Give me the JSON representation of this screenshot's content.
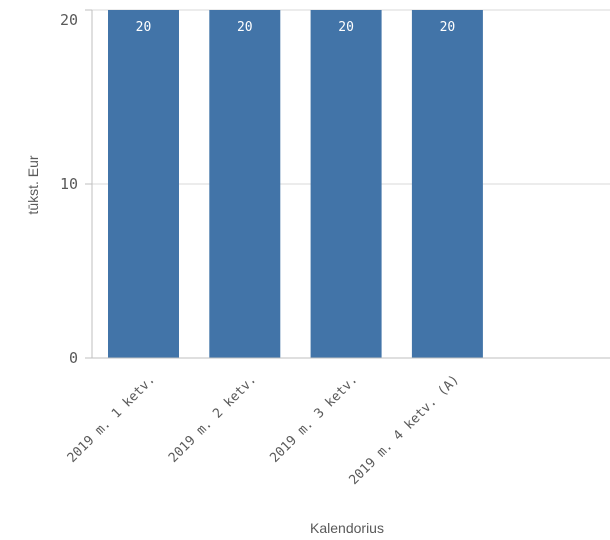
{
  "chart_data": {
    "type": "bar",
    "title": "",
    "xlabel": "Kalendorius",
    "ylabel": "tūkst. Eur",
    "categories": [
      "2019 m. 1 ketv.",
      "2019 m. 2 ketv.",
      "2019 m. 3 ketv.",
      "2019 m. 4 ketv. (A)"
    ],
    "series": [
      {
        "values": [
          20,
          20,
          20,
          20
        ],
        "data_labels": [
          "20",
          "20",
          "20",
          "20"
        ],
        "color": "#4274a8"
      }
    ],
    "ylim": [
      0,
      20
    ],
    "yticks": [
      0,
      10,
      20
    ],
    "ytick_labels": [
      "0",
      "10",
      "20"
    ],
    "grid": true,
    "legend": "none"
  },
  "colors": {
    "bar": "#4274a8",
    "gridline": "#d9d9d9",
    "axis": "#bfbfbf",
    "text": "#595959"
  }
}
